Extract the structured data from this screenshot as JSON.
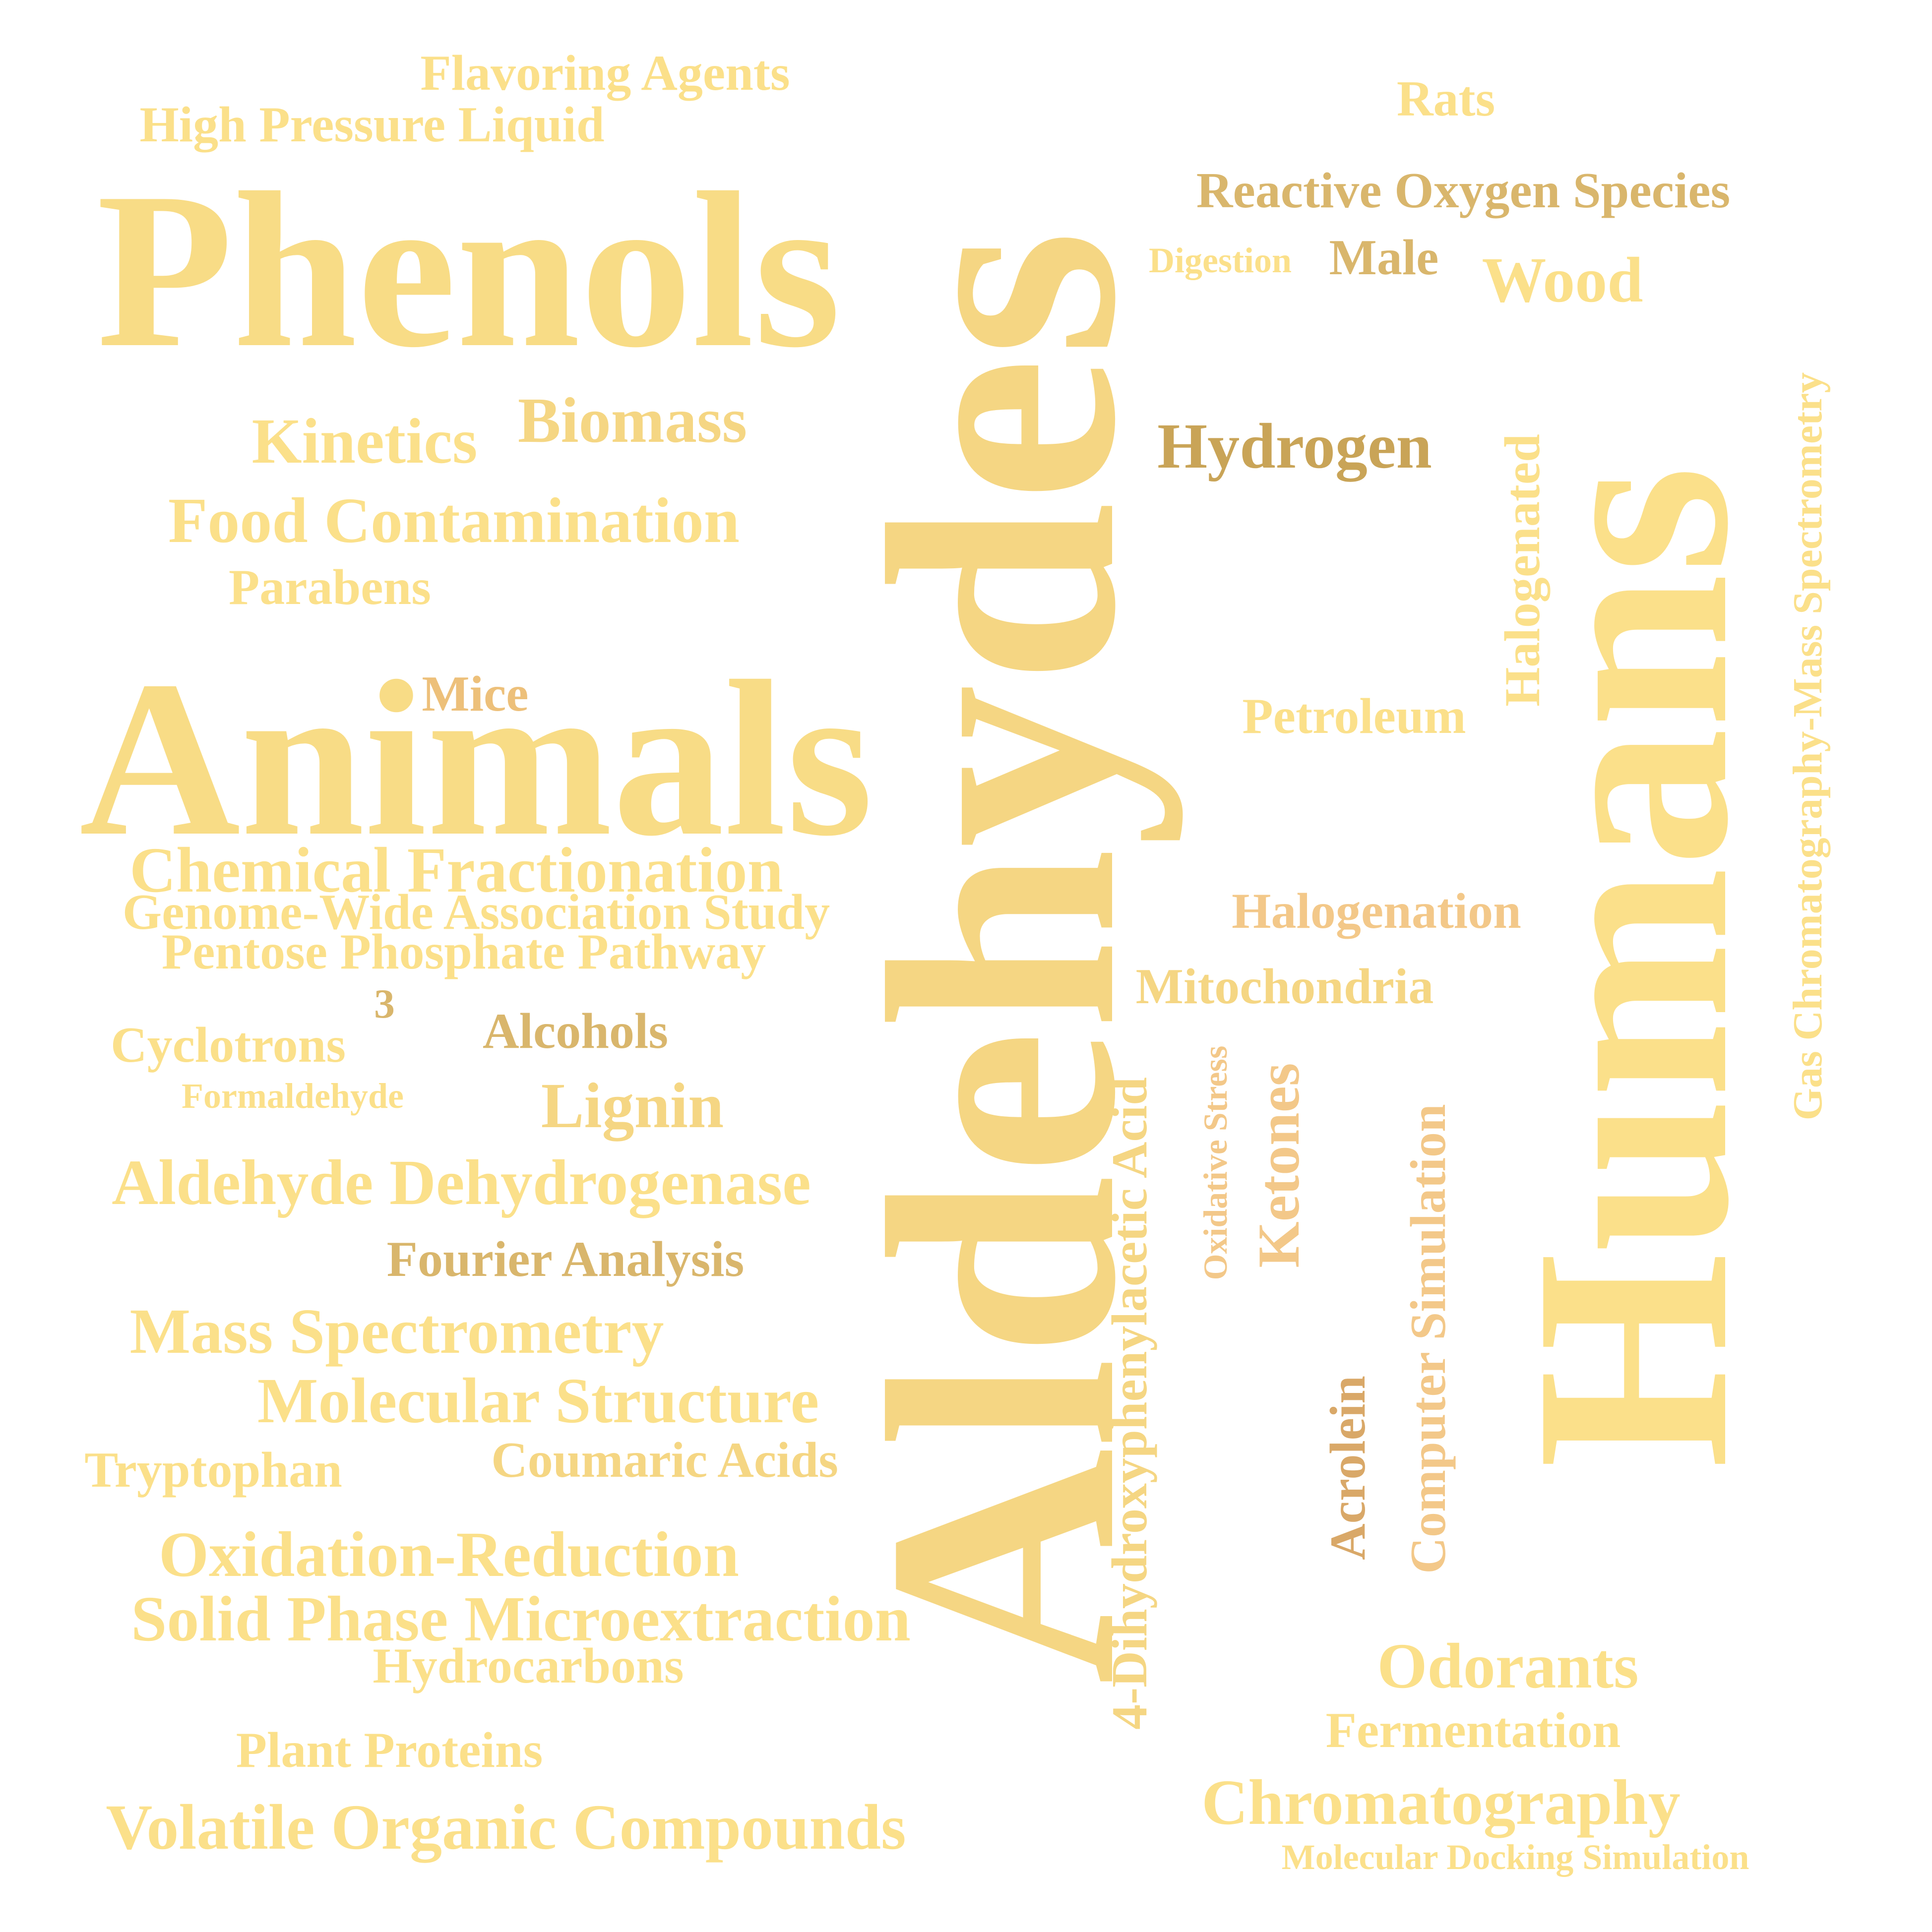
{
  "colors": {
    "background": "#ffffff",
    "light_gold": "#fbe08a",
    "pale_gold": "#f8dc86",
    "gold": "#f5d683",
    "tan": "#d9b66c",
    "dark_tan": "#c9a457",
    "orange_tan": "#edc07a",
    "sandy": "#f3c889"
  },
  "words": [
    {
      "text": "Flavoring Agents"
    },
    {
      "text": "High Pressure Liquid"
    },
    {
      "text": "Rats"
    },
    {
      "text": "Reactive Oxygen Species"
    },
    {
      "text": "Phenols"
    },
    {
      "text": "Digestion"
    },
    {
      "text": "Male"
    },
    {
      "text": "Wood"
    },
    {
      "text": "Aldehydes"
    },
    {
      "text": "Humans"
    },
    {
      "text": "Gas Chromatography-Mass Spectrometry"
    },
    {
      "text": "Kinetics"
    },
    {
      "text": "Biomass"
    },
    {
      "text": "Hydrogen"
    },
    {
      "text": "Halogenated"
    },
    {
      "text": "Food Contamination"
    },
    {
      "text": "Parabens"
    },
    {
      "text": "Mice"
    },
    {
      "text": "Animals"
    },
    {
      "text": "Petroleum"
    },
    {
      "text": "Chemical Fractionation"
    },
    {
      "text": "Genome-Wide Association Study"
    },
    {
      "text": "Pentose Phosphate Pathway"
    },
    {
      "text": "Halogenation"
    },
    {
      "text": "3"
    },
    {
      "text": "Mitochondria"
    },
    {
      "text": "Alcohols"
    },
    {
      "text": "Cyclotrons"
    },
    {
      "text": "Formaldehyde"
    },
    {
      "text": "Lignin"
    },
    {
      "text": "4-Dihydroxyphenylacetic Acid"
    },
    {
      "text": "Oxidative Stress"
    },
    {
      "text": "Ketones"
    },
    {
      "text": "Computer Simulation"
    },
    {
      "text": "Aldehyde Dehydrogenase"
    },
    {
      "text": "Fourier Analysis"
    },
    {
      "text": "Mass Spectrometry"
    },
    {
      "text": "Molecular Structure"
    },
    {
      "text": "Acrolein"
    },
    {
      "text": "Tryptophan"
    },
    {
      "text": "Coumaric Acids"
    },
    {
      "text": "Oxidation-Reduction"
    },
    {
      "text": "Solid Phase Microextraction"
    },
    {
      "text": "Hydrocarbons"
    },
    {
      "text": "Odorants"
    },
    {
      "text": "Fermentation"
    },
    {
      "text": "Plant Proteins"
    },
    {
      "text": "Volatile Organic Compounds"
    },
    {
      "text": "Chromatography"
    },
    {
      "text": "Molecular Docking Simulation"
    }
  ]
}
